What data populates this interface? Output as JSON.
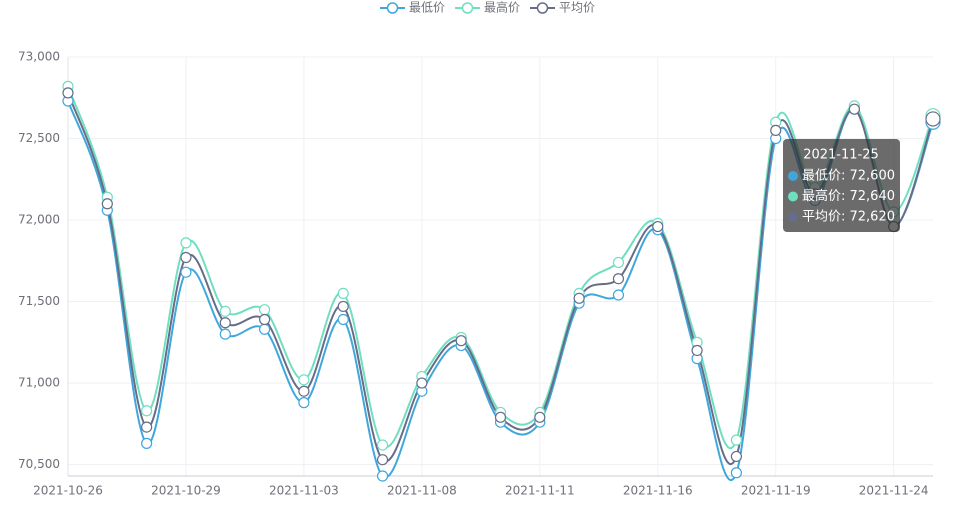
{
  "chart_data": {
    "type": "line",
    "categories": [
      "2021-10-26",
      null,
      null,
      "2021-10-29",
      null,
      null,
      "2021-11-03",
      null,
      null,
      "2021-11-08",
      null,
      null,
      "2021-11-11",
      null,
      null,
      "2021-11-16",
      null,
      null,
      "2021-11-19",
      null,
      null,
      "2021-11-24",
      null
    ],
    "series": [
      {
        "name": "最低价",
        "color": "#3fa7dc",
        "values": [
          72730,
          72060,
          70630,
          71680,
          71300,
          71330,
          70880,
          71390,
          70430,
          70950,
          71230,
          70760,
          70760,
          71490,
          71540,
          71940,
          71150,
          70450,
          72500,
          72120,
          72680,
          71960,
          72600
        ]
      },
      {
        "name": "最高价",
        "color": "#6fdfc0",
        "values": [
          72820,
          72140,
          70830,
          71860,
          71440,
          71450,
          71020,
          71550,
          70620,
          71040,
          71280,
          70820,
          70820,
          71550,
          71740,
          71980,
          71250,
          70650,
          72600,
          72200,
          72700,
          72050,
          72640
        ]
      },
      {
        "name": "平均价",
        "color": "#676d88",
        "values": [
          72780,
          72100,
          70730,
          71770,
          71370,
          71390,
          70950,
          71470,
          70530,
          71000,
          71260,
          70790,
          70790,
          71520,
          71640,
          71960,
          71200,
          70550,
          72550,
          72160,
          72680,
          71960,
          72620
        ]
      }
    ],
    "ylim": [
      70430,
      73000
    ],
    "yticks": [
      {
        "value": 70500,
        "label": "70,500"
      },
      {
        "value": 71000,
        "label": "71,000"
      },
      {
        "value": 71500,
        "label": "71,500"
      },
      {
        "value": 72000,
        "label": "72,000"
      },
      {
        "value": 72500,
        "label": "72,500"
      },
      {
        "value": 73000,
        "label": "73,000"
      }
    ],
    "grid": true,
    "legend": "top",
    "tooltip": {
      "title": "2021-11-25",
      "value_labels": [
        "最低价: 72,600",
        "最高价: 72,640",
        "平均价: 72,620"
      ]
    }
  }
}
